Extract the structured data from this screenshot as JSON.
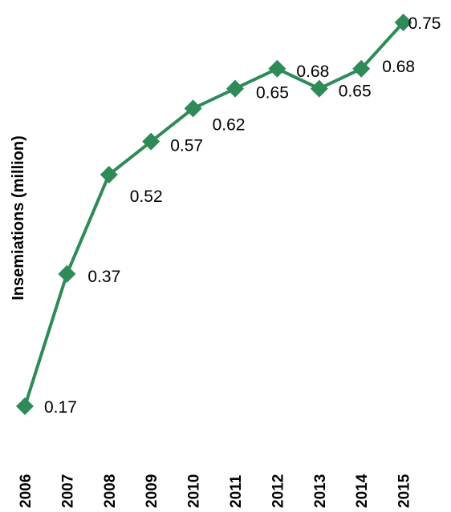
{
  "chart_data": {
    "type": "line",
    "title": "",
    "xlabel": "",
    "ylabel": "Insemiations (million)",
    "categories": [
      "2006",
      "2007",
      "2008",
      "2009",
      "2010",
      "2011",
      "2012",
      "2013",
      "2014",
      "2015"
    ],
    "series": [
      {
        "values": [
          0.17,
          0.37,
          0.52,
          0.57,
          0.62,
          0.65,
          0.68,
          0.65,
          0.68,
          0.75
        ],
        "data_labels": [
          "0.17",
          "0.37",
          "0.52",
          "0.57",
          "0.62",
          "0.65",
          "0.68",
          "0.65",
          "0.68",
          "0.75"
        ],
        "color": "#2e8b57",
        "marker": "diamond"
      }
    ],
    "ylim": [
      0.1,
      0.8
    ],
    "grid": false,
    "legend": "none"
  }
}
